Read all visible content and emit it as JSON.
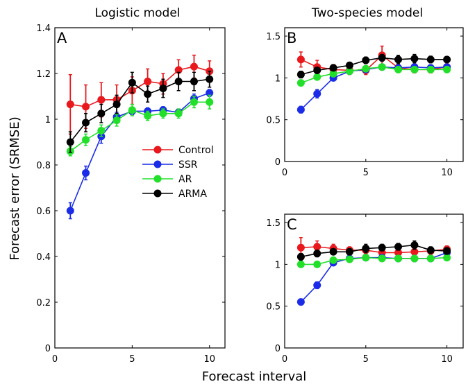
{
  "titles": {
    "left": "Logistic model",
    "right": "Two-species model"
  },
  "axis_labels": {
    "x": "Forecast interval",
    "y": "Forecast error (SRMSE)"
  },
  "colors": {
    "Control": "#e8181c",
    "SSR": "#1a2ce8",
    "AR": "#22e02a",
    "ARMA": "#000000"
  },
  "chart_data": [
    {
      "type": "line",
      "panel": "A",
      "title": "Logistic model",
      "xlabel": "Forecast interval",
      "ylabel": "Forecast error (SRMSE)",
      "xlim": [
        0,
        11
      ],
      "ylim": [
        0,
        1.4
      ],
      "xticks": [
        0,
        5,
        10
      ],
      "yticks": [
        0,
        0.2,
        0.4,
        0.6,
        0.8,
        1,
        1.2,
        1.4
      ],
      "legend": "center-right",
      "x": [
        1,
        2,
        3,
        4,
        5,
        6,
        7,
        8,
        9,
        10
      ],
      "series": [
        {
          "name": "Control",
          "values": [
            1.065,
            1.055,
            1.085,
            1.085,
            1.125,
            1.165,
            1.155,
            1.215,
            1.23,
            1.21
          ],
          "err": [
            0.13,
            0.095,
            0.075,
            0.065,
            0.06,
            0.055,
            0.045,
            0.045,
            0.05,
            0.045
          ]
        },
        {
          "name": "SSR",
          "values": [
            0.6,
            0.765,
            0.925,
            1.01,
            1.035,
            1.035,
            1.04,
            1.03,
            1.09,
            1.115
          ],
          "err": [
            0.035,
            0.03,
            0.03,
            0.02,
            0.015,
            0.015,
            0.015,
            0.015,
            0.02,
            0.015
          ]
        },
        {
          "name": "AR",
          "values": [
            0.86,
            0.91,
            0.95,
            0.995,
            1.04,
            1.015,
            1.025,
            1.025,
            1.075,
            1.075
          ],
          "err": [
            0.02,
            0.025,
            0.025,
            0.025,
            0.025,
            0.02,
            0.02,
            0.02,
            0.025,
            0.03
          ]
        },
        {
          "name": "ARMA",
          "values": [
            0.9,
            0.985,
            1.025,
            1.065,
            1.16,
            1.11,
            1.135,
            1.165,
            1.165,
            1.175
          ],
          "err": [
            0.045,
            0.04,
            0.04,
            0.04,
            0.045,
            0.035,
            0.04,
            0.04,
            0.04,
            0.035
          ]
        }
      ]
    },
    {
      "type": "line",
      "panel": "B",
      "title": "Two-species model",
      "xlim": [
        0,
        11
      ],
      "ylim": [
        0,
        1.6
      ],
      "xticks": [
        0,
        5,
        10
      ],
      "yticks": [
        0,
        0.5,
        1,
        1.5
      ],
      "x": [
        1,
        2,
        3,
        4,
        5,
        6,
        7,
        8,
        9,
        10
      ],
      "series": [
        {
          "name": "Control",
          "values": [
            1.22,
            1.13,
            1.1,
            1.09,
            1.09,
            1.27,
            1.12,
            1.1,
            1.1,
            1.13
          ],
          "err": [
            0.09,
            0.08,
            0.06,
            0.05,
            0.05,
            0.11,
            0.04,
            0.04,
            0.04,
            0.04
          ]
        },
        {
          "name": "SSR",
          "values": [
            0.62,
            0.81,
            1.0,
            1.08,
            1.1,
            1.13,
            1.12,
            1.13,
            1.12,
            1.13
          ],
          "err": [
            0.04,
            0.05,
            0.03,
            0.02,
            0.02,
            0.02,
            0.02,
            0.02,
            0.02,
            0.02
          ]
        },
        {
          "name": "AR",
          "values": [
            0.94,
            1.01,
            1.05,
            1.08,
            1.11,
            1.13,
            1.1,
            1.1,
            1.1,
            1.1
          ],
          "err": [
            0.02,
            0.02,
            0.02,
            0.02,
            0.02,
            0.02,
            0.02,
            0.02,
            0.02,
            0.02
          ]
        },
        {
          "name": "ARMA",
          "values": [
            1.04,
            1.09,
            1.12,
            1.15,
            1.21,
            1.24,
            1.22,
            1.23,
            1.22,
            1.22
          ],
          "err": [
            0.04,
            0.03,
            0.03,
            0.03,
            0.04,
            0.04,
            0.05,
            0.05,
            0.04,
            0.03
          ]
        }
      ]
    },
    {
      "type": "line",
      "panel": "C",
      "xlim": [
        0,
        11
      ],
      "ylim": [
        0,
        1.6
      ],
      "xticks": [
        0,
        5,
        10
      ],
      "yticks": [
        0,
        0.5,
        1,
        1.5
      ],
      "x": [
        1,
        2,
        3,
        4,
        5,
        6,
        7,
        8,
        9,
        10
      ],
      "series": [
        {
          "name": "Control",
          "values": [
            1.2,
            1.21,
            1.19,
            1.17,
            1.17,
            1.14,
            1.14,
            1.15,
            1.16,
            1.18
          ],
          "err": [
            0.12,
            0.07,
            0.05,
            0.04,
            0.04,
            0.04,
            0.04,
            0.04,
            0.04,
            0.04
          ]
        },
        {
          "name": "SSR",
          "values": [
            0.55,
            0.75,
            1.02,
            1.07,
            1.08,
            1.08,
            1.07,
            1.07,
            1.07,
            1.14
          ],
          "err": [
            0.03,
            0.04,
            0.03,
            0.02,
            0.02,
            0.02,
            0.02,
            0.02,
            0.02,
            0.02
          ]
        },
        {
          "name": "AR",
          "values": [
            1.0,
            1.0,
            1.05,
            1.06,
            1.08,
            1.07,
            1.07,
            1.07,
            1.07,
            1.08
          ],
          "err": [
            0.02,
            0.02,
            0.02,
            0.02,
            0.02,
            0.02,
            0.02,
            0.02,
            0.02,
            0.02
          ]
        },
        {
          "name": "ARMA",
          "values": [
            1.09,
            1.13,
            1.15,
            1.15,
            1.19,
            1.2,
            1.21,
            1.23,
            1.17,
            1.16
          ],
          "err": [
            0.04,
            0.04,
            0.03,
            0.03,
            0.05,
            0.04,
            0.04,
            0.05,
            0.04,
            0.04
          ]
        }
      ]
    }
  ]
}
